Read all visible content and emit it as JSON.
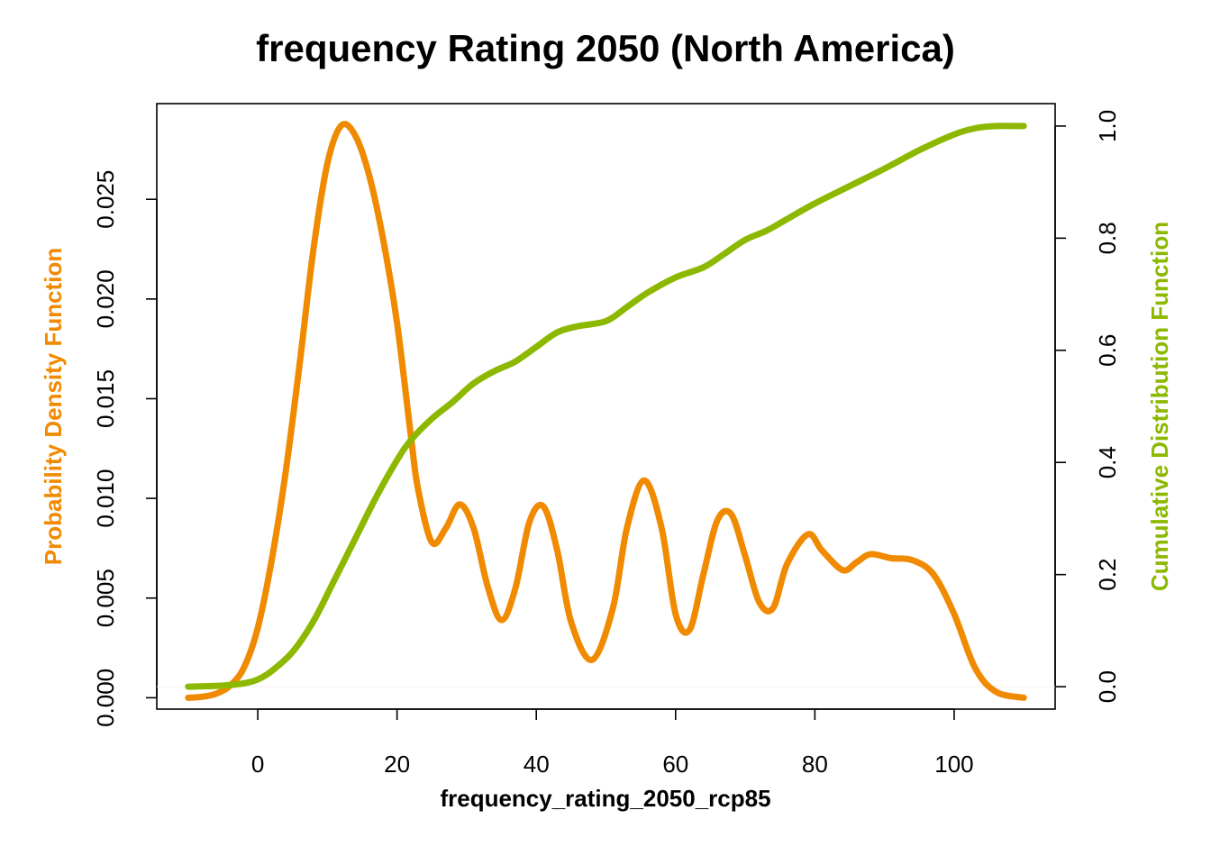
{
  "chart_data": {
    "type": "line",
    "title": "frequency Rating 2050 (North America)",
    "xlabel": "frequency_rating_2050_rcp85",
    "ylabel_left": "Probability Density Function",
    "ylabel_right": "Cumulative Distribution Function",
    "xlim": [
      -14.5,
      114.5
    ],
    "ylim_left": [
      -0.00057,
      0.0298
    ],
    "ylim_right": [
      -0.04,
      1.04
    ],
    "x_ticks": [
      0,
      20,
      40,
      60,
      80,
      100
    ],
    "y_left_ticks": [
      0.0,
      0.005,
      0.01,
      0.015,
      0.02,
      0.025
    ],
    "y_left_tick_labels": [
      "0.000",
      "0.005",
      "0.010",
      "0.015",
      "0.020",
      "0.025"
    ],
    "y_right_ticks": [
      0.0,
      0.2,
      0.4,
      0.6,
      0.8,
      1.0
    ],
    "y_right_tick_labels": [
      "0.0",
      "0.2",
      "0.4",
      "0.6",
      "0.8",
      "1.0"
    ],
    "grid": false,
    "colors": {
      "pdf": "#f08a00",
      "cdf": "#8cb800",
      "axis": "#000000"
    },
    "series": [
      {
        "axis": "left",
        "x": [
          -10,
          -8,
          -6,
          -4,
          -2,
          0,
          2,
          4,
          6,
          8,
          10,
          12,
          14,
          16,
          18,
          20,
          22,
          23,
          25,
          27,
          29,
          31,
          33,
          35,
          37,
          39,
          41,
          43,
          45,
          48,
          51,
          53,
          55.5,
          58,
          60,
          62,
          64,
          66,
          68,
          70,
          72,
          74,
          76,
          79,
          81,
          84,
          86,
          88,
          91,
          94,
          97,
          100,
          103,
          106,
          110
        ],
        "values": [
          0.0,
          5e-05,
          0.0002,
          0.0006,
          0.0015,
          0.0035,
          0.0069,
          0.0113,
          0.0167,
          0.0225,
          0.0268,
          0.0287,
          0.0282,
          0.0262,
          0.023,
          0.0188,
          0.0131,
          0.0105,
          0.0078,
          0.0085,
          0.0097,
          0.0085,
          0.0056,
          0.0039,
          0.0055,
          0.0088,
          0.0096,
          0.0074,
          0.0038,
          0.0019,
          0.0045,
          0.0085,
          0.0109,
          0.0085,
          0.0042,
          0.0034,
          0.0062,
          0.0089,
          0.0092,
          0.0071,
          0.0048,
          0.0045,
          0.0067,
          0.0082,
          0.0074,
          0.0064,
          0.0068,
          0.0072,
          0.007,
          0.0069,
          0.0062,
          0.0042,
          0.0015,
          0.0003,
          0.0
        ]
      },
      {
        "axis": "right",
        "x": [
          -10,
          -5,
          -2,
          0,
          2,
          5,
          8,
          11,
          14,
          17,
          20,
          22,
          25,
          28,
          31,
          34,
          37,
          40,
          43,
          46,
          50,
          53,
          56,
          60,
          64,
          67,
          70,
          73,
          76,
          80,
          85,
          90,
          95,
          100,
          103,
          106,
          110
        ],
        "values": [
          0.0,
          0.002,
          0.006,
          0.013,
          0.028,
          0.062,
          0.117,
          0.19,
          0.264,
          0.338,
          0.404,
          0.44,
          0.478,
          0.508,
          0.541,
          0.563,
          0.58,
          0.606,
          0.632,
          0.643,
          0.652,
          0.677,
          0.703,
          0.73,
          0.748,
          0.772,
          0.797,
          0.813,
          0.834,
          0.862,
          0.893,
          0.924,
          0.957,
          0.985,
          0.996,
          1.0,
          1.0
        ]
      }
    ]
  }
}
